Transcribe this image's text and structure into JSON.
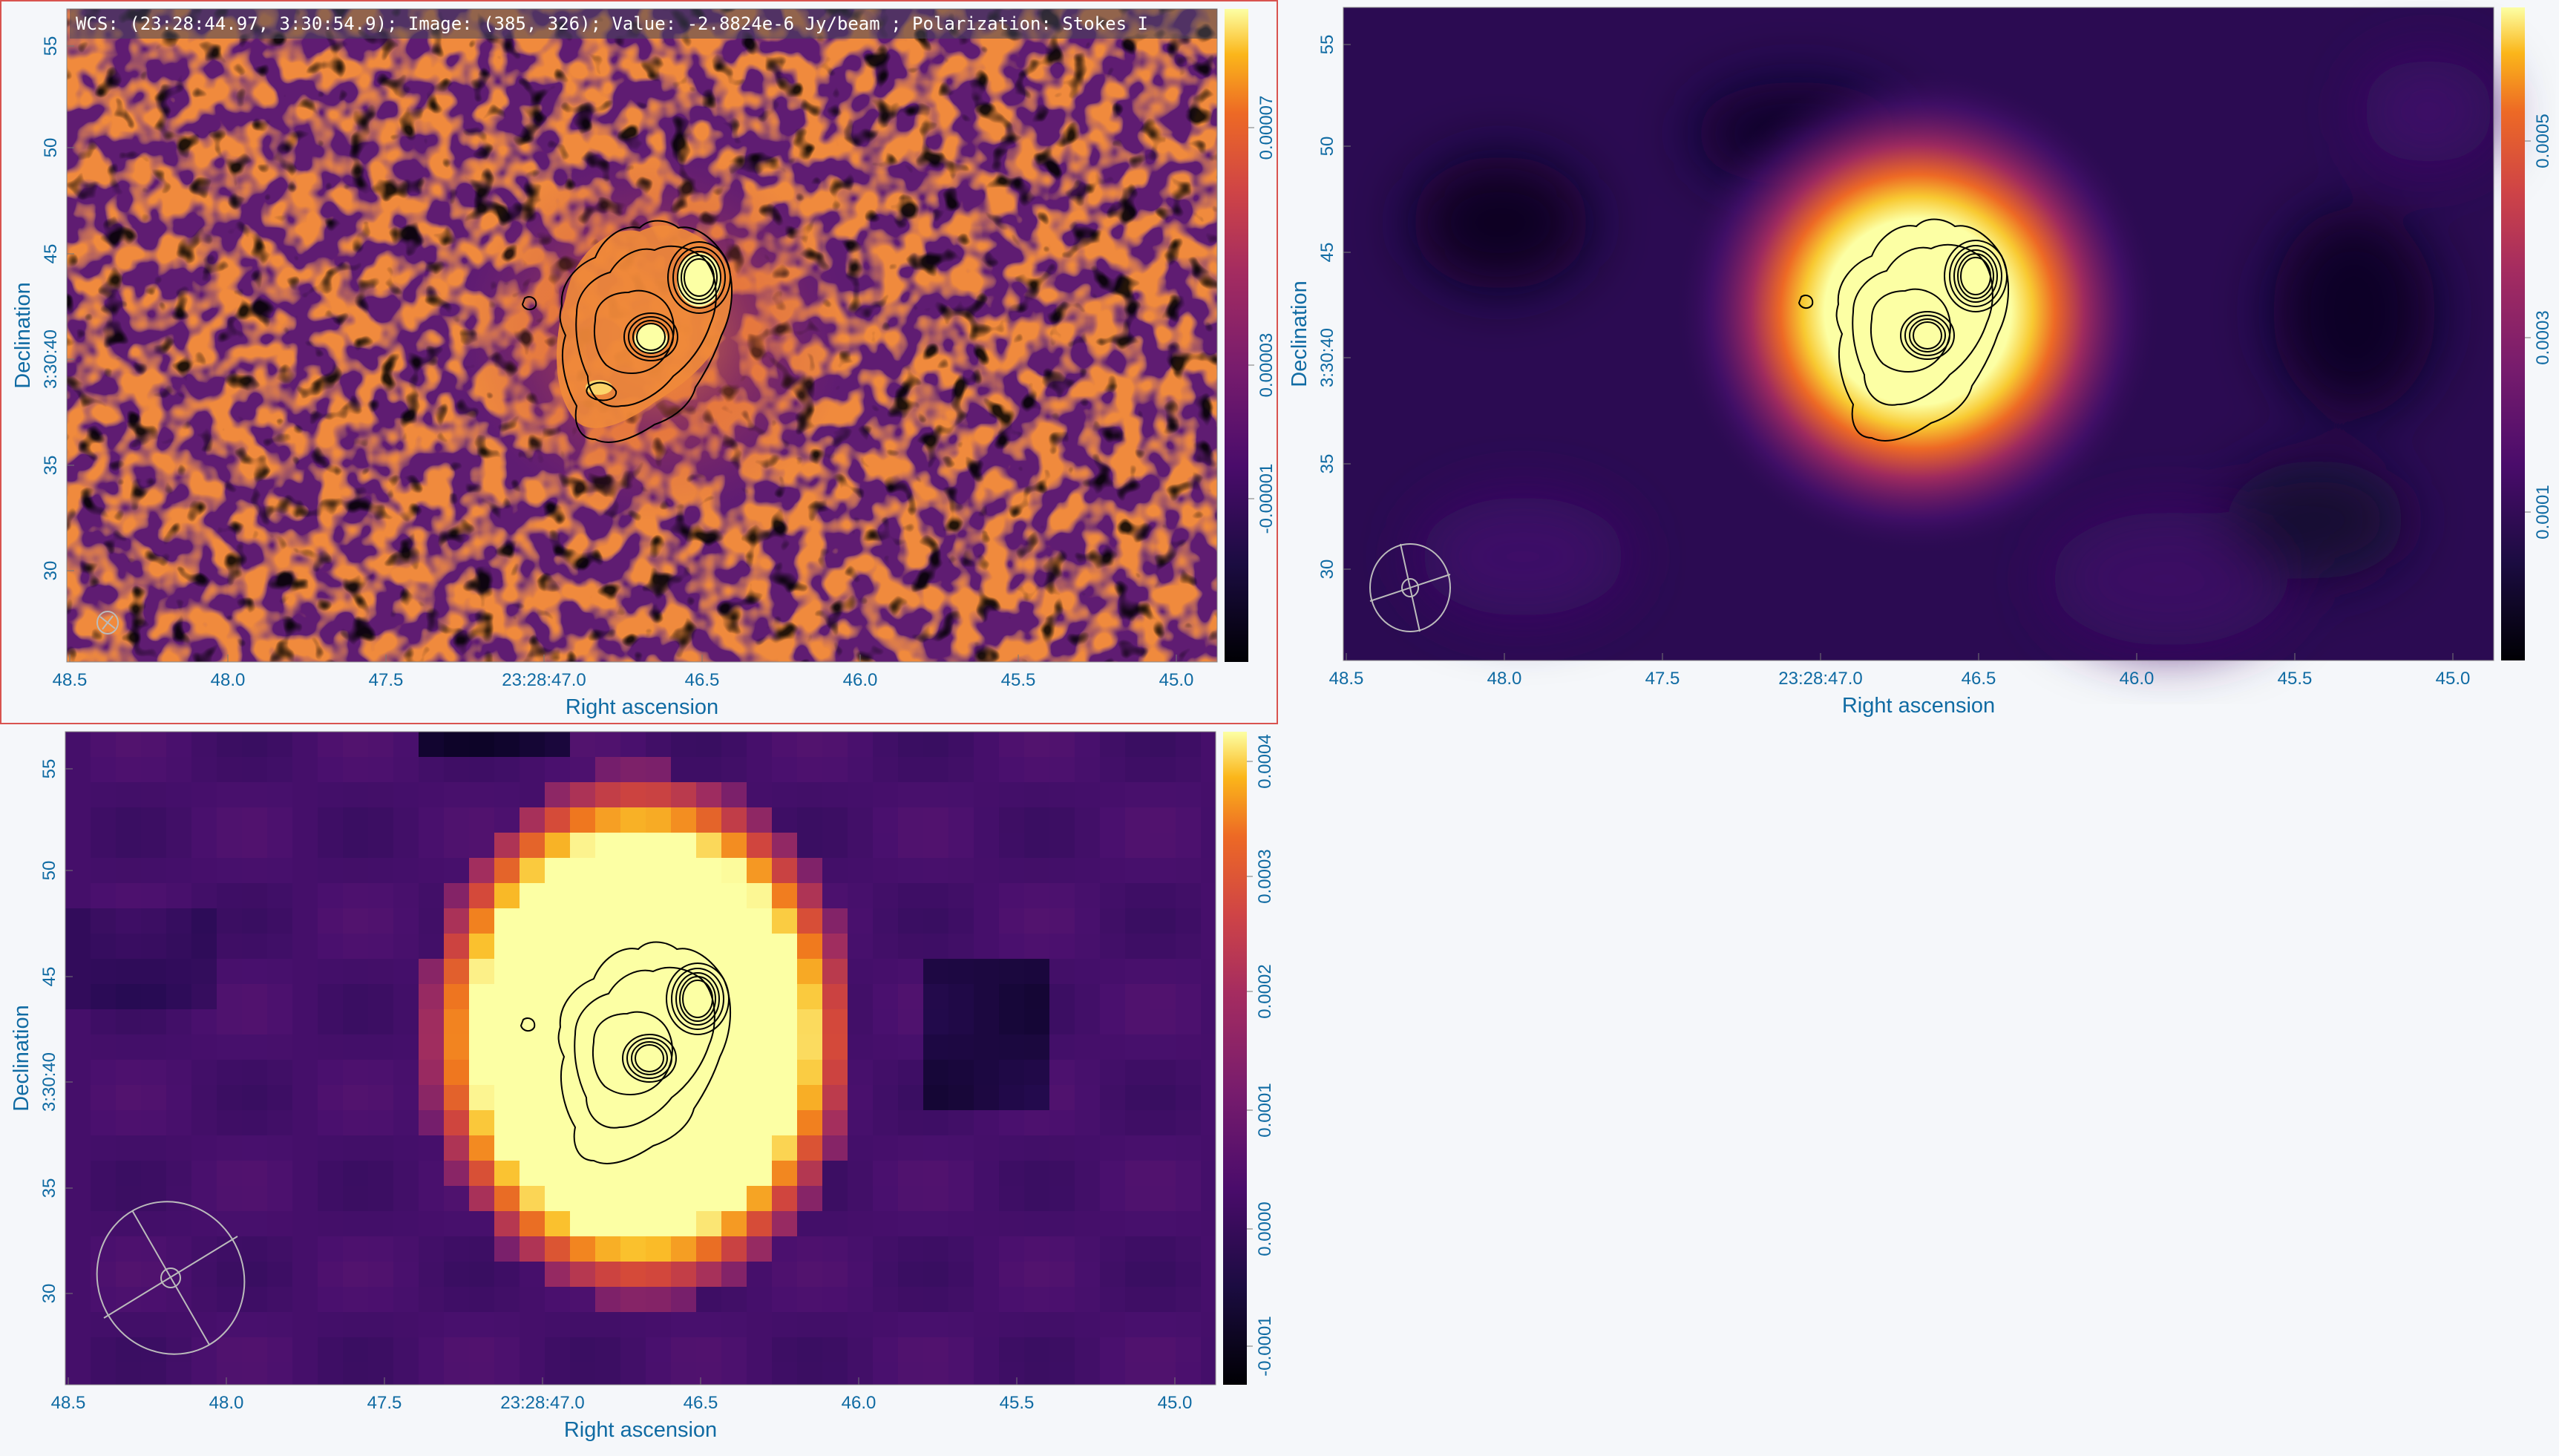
{
  "cursor_info": "WCS: (23:28:44.97, 3:30:54.9); Image: (385, 326); Value: -2.8824e-6 Jy/beam ; Polarization: Stokes I",
  "axes": {
    "x_title": "Right ascension",
    "y_title": "Declination",
    "x_ticks": [
      "48.5",
      "48.0",
      "47.5",
      "23:28:47.0",
      "46.5",
      "46.0",
      "45.5",
      "45.0"
    ],
    "y_ticks": [
      "55",
      "50",
      "45",
      "3:30:40",
      "35",
      "30"
    ]
  },
  "colors": {
    "axis_text": "#106ba3",
    "active_border": "#d9534f",
    "colormap": "inferno",
    "contour": "#000000",
    "beam": "#bbbbbb"
  },
  "panels": [
    {
      "name": "panel-1",
      "active": true,
      "colorbar_ticks": [
        "0.00007",
        "0.00003",
        "-0.00001"
      ],
      "map_style": "noise"
    },
    {
      "name": "panel-2",
      "active": false,
      "colorbar_ticks": [
        "0.0005",
        "0.0003",
        "0.0001"
      ],
      "map_style": "smooth"
    },
    {
      "name": "panel-3",
      "active": false,
      "colorbar_ticks": [
        "0.0004",
        "0.0003",
        "0.0002",
        "0.0001",
        "0.0000",
        "-0.0001"
      ],
      "map_style": "blocky"
    }
  ]
}
